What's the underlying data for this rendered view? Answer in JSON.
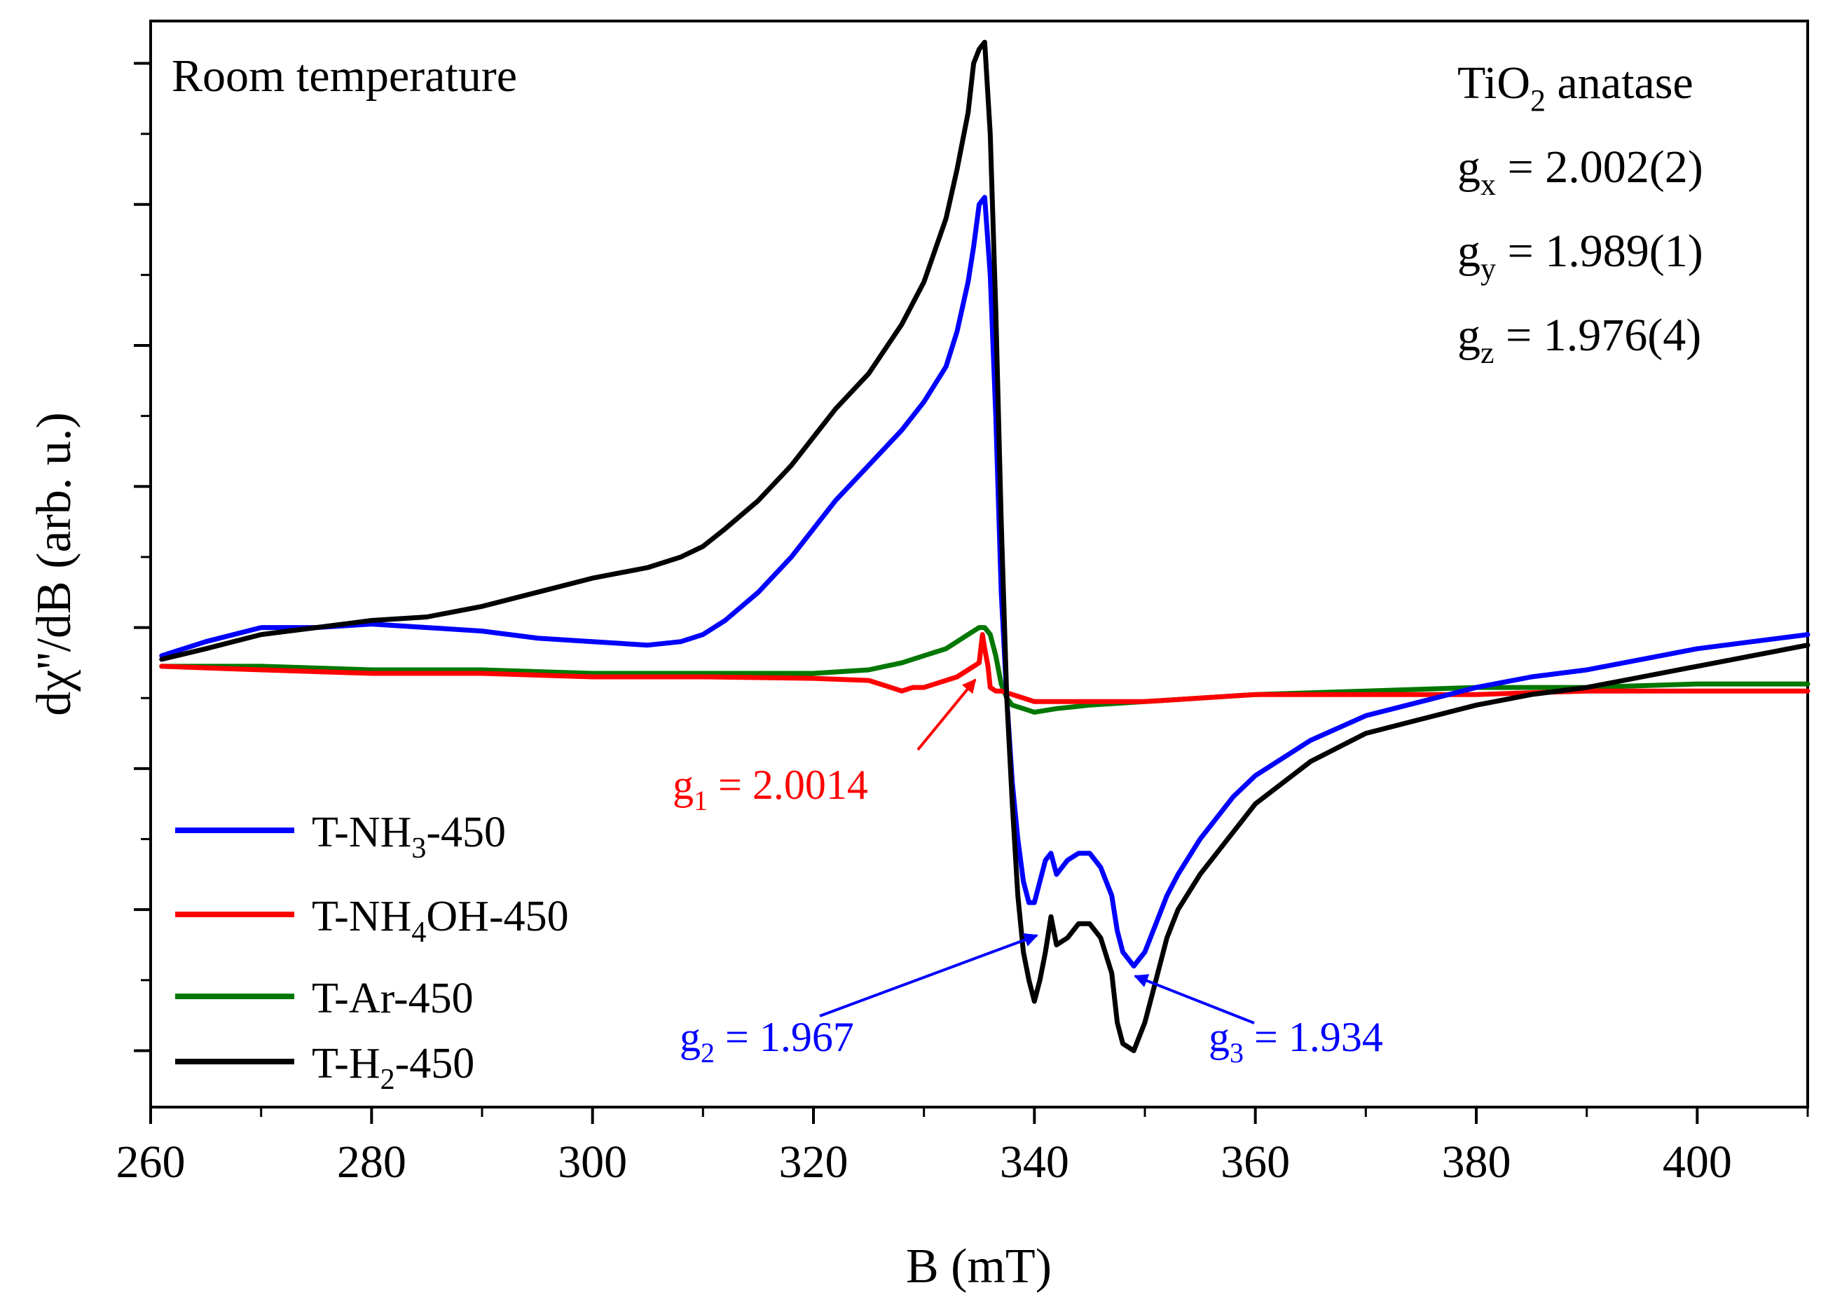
{
  "chart_data": {
    "type": "line",
    "xlabel": "B (mT)",
    "ylabel": "dχ''/dB (arb. u.)",
    "xlim": [
      260,
      410
    ],
    "ylim": [
      -6.8,
      8.6
    ],
    "x_ticks": [
      260,
      280,
      300,
      320,
      340,
      360,
      380,
      400
    ],
    "x_tick_labels": [
      "260",
      "280",
      "300",
      "320",
      "340",
      "360",
      "380",
      "400"
    ],
    "y_tick_labels_shown": false,
    "annotations": {
      "top_left": "Room temperature",
      "material": {
        "prefix": "TiO",
        "sub": "2",
        "suffix": " anatase"
      },
      "g_values": [
        {
          "prefix": "g",
          "sub": "x",
          "suffix": " = 2.002(2)"
        },
        {
          "prefix": "g",
          "sub": "y",
          "suffix": " = 1.989(1)"
        },
        {
          "prefix": "g",
          "sub": "z",
          "suffix": " = 1.976(4)"
        }
      ],
      "g1": {
        "prefix": "g",
        "sub": "1",
        "suffix": " = 2.0014",
        "color": "#ff0000",
        "arrow_to": [
          335.5,
          -0.65
        ]
      },
      "g2": {
        "prefix": "g",
        "sub": "2",
        "suffix": " = 1.967",
        "color": "#0000ff",
        "arrow_to": [
          339.8,
          -4.5
        ]
      },
      "g3": {
        "prefix": "g",
        "sub": "3",
        "suffix": " = 1.934",
        "color": "#0000ff",
        "arrow_to": [
          349.0,
          -5.3
        ]
      }
    },
    "legend": {
      "placement": "bottom-left",
      "entries": [
        {
          "prefix": "T-NH",
          "sub": "3",
          "suffix": "-450",
          "color": "#0000ff"
        },
        {
          "prefix": "T-NH",
          "sub": "4",
          "suffix": "OH-450",
          "color": "#ff0000"
        },
        {
          "prefix": "T-Ar-450",
          "sub": "",
          "suffix": "",
          "color": "#007700"
        },
        {
          "prefix": "T-H",
          "sub": "2",
          "suffix": "-450",
          "color": "#000000"
        }
      ]
    },
    "series": [
      {
        "name": "T-NH3-450",
        "color": "#0000ff",
        "x": [
          261,
          265,
          270,
          275,
          280,
          285,
          290,
          295,
          300,
          305,
          308,
          310,
          312,
          315,
          318,
          320,
          322,
          325,
          328,
          330,
          332,
          333,
          334,
          334.5,
          335,
          335.5,
          336,
          336.5,
          337,
          337.5,
          338,
          338.5,
          339,
          339.5,
          340,
          340.5,
          341,
          341.5,
          342,
          343,
          344,
          345,
          346,
          347,
          347.5,
          348,
          349,
          350,
          351,
          352,
          353,
          355,
          358,
          360,
          365,
          370,
          375,
          380,
          385,
          390,
          395,
          400,
          405,
          410
        ],
        "y": [
          -0.4,
          -0.2,
          0.0,
          0.0,
          0.05,
          0.0,
          -0.05,
          -0.15,
          -0.2,
          -0.25,
          -0.2,
          -0.1,
          0.1,
          0.5,
          1.0,
          1.4,
          1.8,
          2.3,
          2.8,
          3.2,
          3.7,
          4.2,
          4.9,
          5.4,
          6.0,
          6.1,
          5.0,
          3.0,
          0.5,
          -1.0,
          -2.2,
          -3.0,
          -3.6,
          -3.9,
          -3.9,
          -3.6,
          -3.3,
          -3.2,
          -3.5,
          -3.3,
          -3.2,
          -3.2,
          -3.4,
          -3.8,
          -4.3,
          -4.6,
          -4.8,
          -4.6,
          -4.2,
          -3.8,
          -3.5,
          -3.0,
          -2.4,
          -2.1,
          -1.6,
          -1.25,
          -1.05,
          -0.85,
          -0.7,
          -0.6,
          -0.45,
          -0.3,
          -0.2,
          -0.1
        ]
      },
      {
        "name": "T-NH4OH-450",
        "color": "#ff0000",
        "x": [
          261,
          270,
          280,
          290,
          300,
          310,
          320,
          325,
          327,
          328,
          329,
          330,
          331,
          332,
          333,
          334,
          335,
          335.3,
          335.5,
          335.8,
          336,
          336.5,
          337,
          338,
          339,
          340,
          342,
          345,
          350,
          360,
          370,
          380,
          390,
          400,
          410
        ],
        "y": [
          -0.55,
          -0.6,
          -0.65,
          -0.65,
          -0.7,
          -0.7,
          -0.72,
          -0.75,
          -0.85,
          -0.9,
          -0.85,
          -0.85,
          -0.8,
          -0.75,
          -0.7,
          -0.6,
          -0.5,
          -0.1,
          -0.3,
          -0.55,
          -0.85,
          -0.9,
          -0.9,
          -0.95,
          -1.0,
          -1.05,
          -1.05,
          -1.05,
          -1.05,
          -0.95,
          -0.95,
          -0.95,
          -0.9,
          -0.9,
          -0.9
        ]
      },
      {
        "name": "T-Ar-450",
        "color": "#007700",
        "x": [
          261,
          270,
          280,
          290,
          300,
          310,
          320,
          325,
          328,
          330,
          332,
          333,
          334,
          335,
          335.5,
          336,
          336.5,
          337,
          337.5,
          338,
          339,
          340,
          342,
          345,
          350,
          360,
          370,
          380,
          390,
          400,
          410
        ],
        "y": [
          -0.55,
          -0.55,
          -0.6,
          -0.6,
          -0.65,
          -0.65,
          -0.65,
          -0.6,
          -0.5,
          -0.4,
          -0.3,
          -0.2,
          -0.1,
          0.0,
          0.0,
          -0.1,
          -0.4,
          -0.8,
          -1.0,
          -1.1,
          -1.15,
          -1.2,
          -1.15,
          -1.1,
          -1.05,
          -0.95,
          -0.9,
          -0.85,
          -0.85,
          -0.8,
          -0.8
        ]
      },
      {
        "name": "T-H2-450",
        "color": "#000000",
        "x": [
          261,
          265,
          270,
          275,
          280,
          285,
          290,
          295,
          300,
          305,
          308,
          310,
          312,
          315,
          318,
          320,
          322,
          325,
          328,
          330,
          332,
          333,
          334,
          334.5,
          335,
          335.5,
          336,
          336.5,
          337,
          337.5,
          338,
          338.5,
          339,
          339.5,
          340,
          340.5,
          341,
          341.5,
          342,
          343,
          344,
          345,
          346,
          347,
          347.5,
          348,
          349,
          350,
          351,
          352,
          353,
          355,
          358,
          360,
          365,
          370,
          375,
          380,
          385,
          390,
          395,
          400,
          405,
          410
        ],
        "y": [
          -0.45,
          -0.3,
          -0.1,
          0.0,
          0.1,
          0.15,
          0.3,
          0.5,
          0.7,
          0.85,
          1.0,
          1.15,
          1.4,
          1.8,
          2.3,
          2.7,
          3.1,
          3.6,
          4.3,
          4.9,
          5.8,
          6.5,
          7.3,
          8.0,
          8.2,
          8.3,
          7.0,
          4.5,
          1.5,
          -1.0,
          -2.5,
          -3.8,
          -4.6,
          -5.0,
          -5.3,
          -5.0,
          -4.6,
          -4.1,
          -4.5,
          -4.4,
          -4.2,
          -4.2,
          -4.4,
          -4.9,
          -5.6,
          -5.9,
          -6.0,
          -5.6,
          -5.0,
          -4.4,
          -4.0,
          -3.5,
          -2.9,
          -2.5,
          -1.9,
          -1.5,
          -1.3,
          -1.1,
          -0.95,
          -0.85,
          -0.7,
          -0.55,
          -0.4,
          -0.25
        ]
      }
    ]
  }
}
